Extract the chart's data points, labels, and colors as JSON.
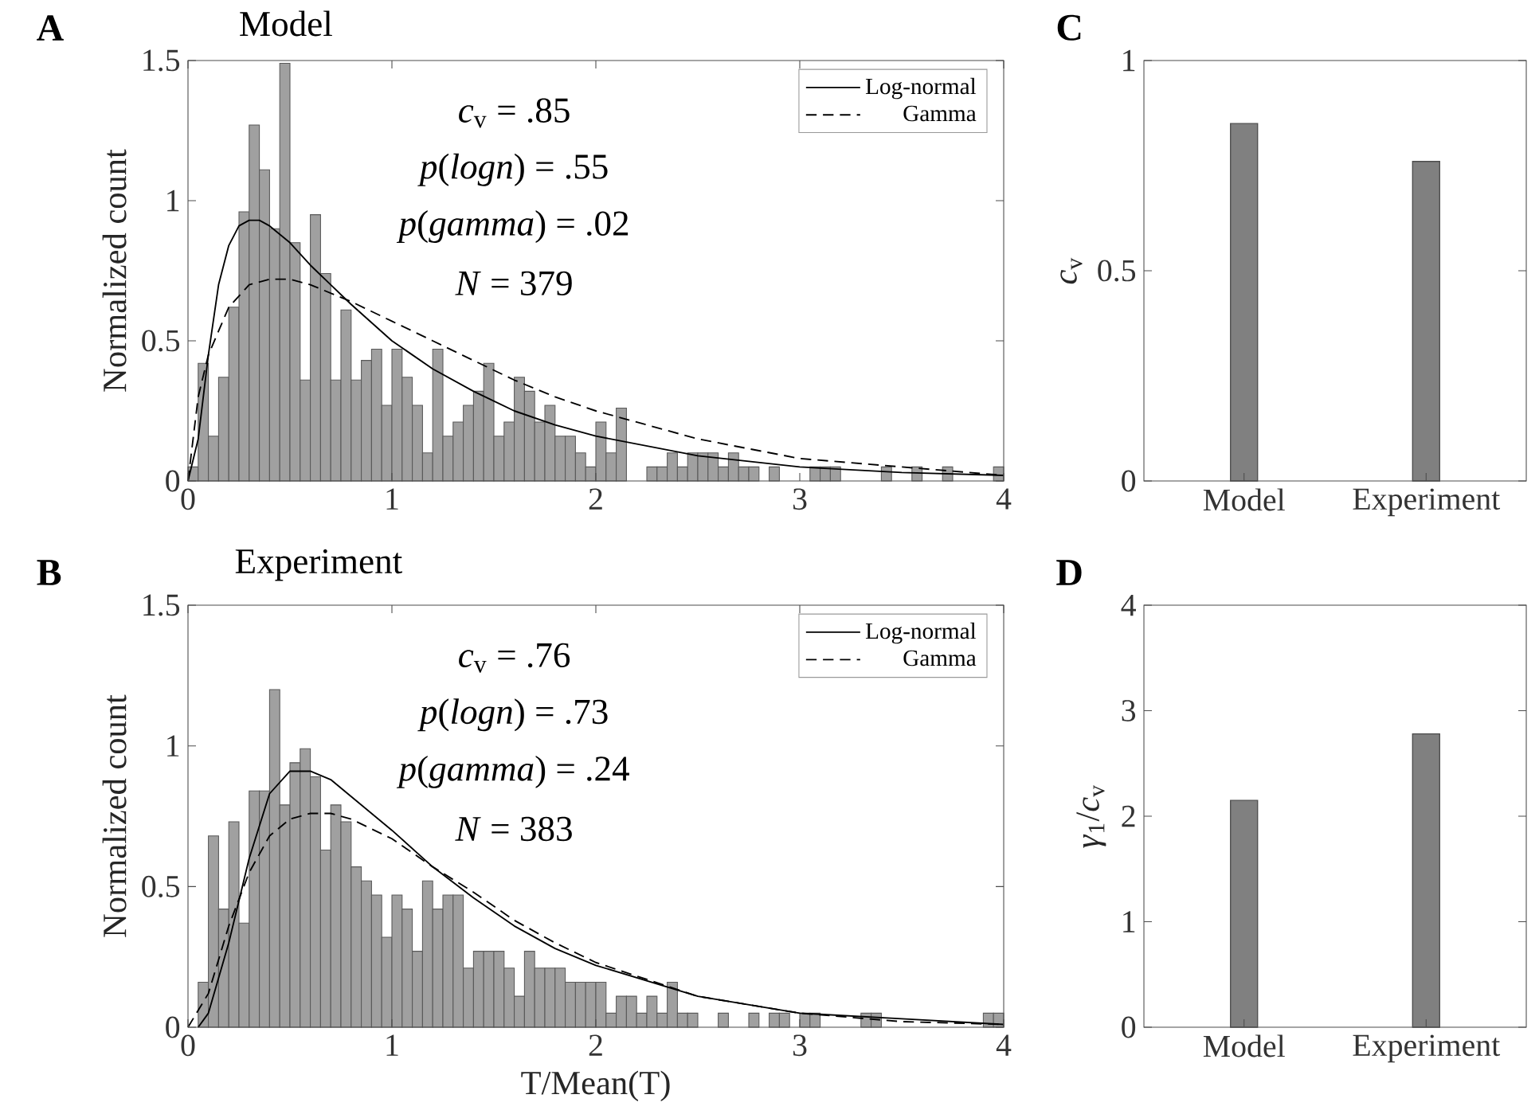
{
  "chart_data": [
    {
      "type": "histogram",
      "title": "Model",
      "ylabel": "Normalized count",
      "color": "#a0a0a0",
      "bins": [
        0,
        0.05,
        0.1,
        0.15,
        0.2,
        0.25,
        0.3,
        0.35,
        0.4,
        0.45,
        0.5,
        0.55,
        0.6,
        0.65,
        0.7,
        0.75,
        0.8,
        0.85,
        0.9,
        0.95,
        1,
        1.05,
        1.1,
        1.15,
        1.2,
        1.25,
        1.3,
        1.35,
        1.4,
        1.45,
        1.5,
        1.55,
        1.6,
        1.65,
        1.7,
        1.75,
        1.8,
        1.85,
        1.9,
        1.95,
        2,
        2.05,
        2.1,
        2.15,
        2.2,
        2.25,
        2.3,
        2.35,
        2.4,
        2.45,
        2.5,
        2.55,
        2.6,
        2.65,
        2.7,
        2.75,
        2.8,
        2.85,
        2.9,
        2.95,
        3,
        3.05,
        3.1,
        3.15,
        3.2,
        3.25,
        3.3,
        3.35,
        3.4,
        3.45,
        3.5,
        3.55,
        3.6,
        3.65,
        3.7,
        3.75,
        3.8,
        3.85,
        3.9,
        3.95,
        4
      ],
      "values": [
        0.05,
        0.42,
        0.16,
        0.37,
        0.62,
        0.96,
        1.27,
        1.11,
        0.9,
        1.49,
        0.85,
        0.36,
        0.95,
        0.74,
        0.36,
        0.61,
        0.36,
        0.43,
        0.47,
        0.27,
        0.47,
        0.37,
        0.27,
        0.1,
        0.47,
        0.16,
        0.21,
        0.27,
        0.32,
        0.42,
        0.16,
        0.21,
        0.37,
        0.32,
        0.21,
        0.27,
        0.16,
        0.16,
        0.1,
        0.05,
        0.21,
        0.1,
        0.26,
        0,
        0,
        0.05,
        0.05,
        0.1,
        0.05,
        0.1,
        0.1,
        0.1,
        0.05,
        0.1,
        0.05,
        0.05,
        0,
        0.05,
        0,
        0,
        0,
        0.05,
        0.05,
        0.05,
        0,
        0,
        0,
        0,
        0.05,
        0,
        0,
        0.05,
        0,
        0,
        0.05,
        0,
        0,
        0,
        0,
        0.05
      ],
      "series": [
        {
          "type": "line",
          "name": "Log-normal",
          "color": "#000000",
          "line_style": "solid",
          "x": [
            0,
            0.05,
            0.1,
            0.15,
            0.2,
            0.25,
            0.3,
            0.35,
            0.4,
            0.5,
            0.6,
            0.7,
            0.8,
            1,
            1.2,
            1.4,
            1.6,
            1.8,
            2,
            2.5,
            3,
            3.5,
            4
          ],
          "values": [
            0,
            0.15,
            0.45,
            0.7,
            0.84,
            0.91,
            0.93,
            0.93,
            0.91,
            0.85,
            0.77,
            0.7,
            0.63,
            0.5,
            0.4,
            0.32,
            0.25,
            0.2,
            0.16,
            0.09,
            0.05,
            0.03,
            0.02
          ]
        },
        {
          "type": "line",
          "name": "Gamma",
          "color": "#000000",
          "line_style": "dashed",
          "x": [
            0,
            0.05,
            0.1,
            0.2,
            0.3,
            0.4,
            0.5,
            0.6,
            0.8,
            1,
            1.2,
            1.4,
            1.6,
            1.8,
            2,
            2.5,
            3,
            3.5,
            4
          ],
          "values": [
            0,
            0.3,
            0.45,
            0.62,
            0.7,
            0.72,
            0.72,
            0.7,
            0.64,
            0.57,
            0.5,
            0.43,
            0.36,
            0.3,
            0.25,
            0.15,
            0.08,
            0.05,
            0.02
          ]
        }
      ],
      "xlim": [
        0,
        4
      ],
      "xticks": [
        0,
        1,
        2,
        3,
        4
      ],
      "ylim": [
        0,
        1.5
      ],
      "yticks": [
        0,
        0.5,
        1,
        1.5
      ],
      "legend": "top right",
      "annotations": [
        "A",
        "*c*$_{v}$ = .85",
        "*p*(*logn*) = .55",
        "*p*(*gamma*) = .02",
        "*N* = 379"
      ]
    },
    {
      "type": "histogram",
      "title": "Experiment",
      "xlabel": "T/Mean(T)",
      "ylabel": "Normalized count",
      "color": "#a0a0a0",
      "bins": [
        0,
        0.05,
        0.1,
        0.15,
        0.2,
        0.25,
        0.3,
        0.35,
        0.4,
        0.45,
        0.5,
        0.55,
        0.6,
        0.65,
        0.7,
        0.75,
        0.8,
        0.85,
        0.9,
        0.95,
        1,
        1.05,
        1.1,
        1.15,
        1.2,
        1.25,
        1.3,
        1.35,
        1.4,
        1.45,
        1.5,
        1.55,
        1.6,
        1.65,
        1.7,
        1.75,
        1.8,
        1.85,
        1.9,
        1.95,
        2,
        2.05,
        2.1,
        2.15,
        2.2,
        2.25,
        2.3,
        2.35,
        2.4,
        2.45,
        2.5,
        2.55,
        2.6,
        2.65,
        2.7,
        2.75,
        2.8,
        2.85,
        2.9,
        2.95,
        3,
        3.05,
        3.1,
        3.15,
        3.2,
        3.25,
        3.3,
        3.35,
        3.4,
        3.45,
        3.5,
        3.55,
        3.6,
        3.65,
        3.7,
        3.75,
        3.8,
        3.85,
        3.9,
        3.95,
        4
      ],
      "values": [
        0,
        0.16,
        0.68,
        0.42,
        0.73,
        0.37,
        0.84,
        0.84,
        1.2,
        0.79,
        0.94,
        0.99,
        0.89,
        0.63,
        0.79,
        0.73,
        0.57,
        0.52,
        0.47,
        0.32,
        0.47,
        0.42,
        0.27,
        0.52,
        0.42,
        0.47,
        0.47,
        0.21,
        0.27,
        0.27,
        0.27,
        0.21,
        0.11,
        0.27,
        0.21,
        0.21,
        0.21,
        0.16,
        0.16,
        0.16,
        0.16,
        0.05,
        0.11,
        0.11,
        0.05,
        0.11,
        0.05,
        0.16,
        0.05,
        0.05,
        0,
        0,
        0.05,
        0,
        0,
        0.05,
        0,
        0.05,
        0.05,
        0,
        0.05,
        0.05,
        0,
        0,
        0,
        0,
        0.05,
        0.05,
        0,
        0,
        0,
        0,
        0,
        0,
        0,
        0,
        0,
        0,
        0.05,
        0.05
      ],
      "series": [
        {
          "type": "line",
          "name": "Log-normal",
          "color": "#000000",
          "line_style": "solid",
          "x": [
            0.05,
            0.1,
            0.2,
            0.3,
            0.4,
            0.5,
            0.6,
            0.7,
            0.8,
            1,
            1.2,
            1.4,
            1.6,
            1.8,
            2,
            2.5,
            3,
            3.5,
            4
          ],
          "values": [
            0,
            0.05,
            0.3,
            0.6,
            0.83,
            0.91,
            0.91,
            0.88,
            0.82,
            0.7,
            0.57,
            0.46,
            0.36,
            0.28,
            0.22,
            0.11,
            0.05,
            0.03,
            0.01
          ]
        },
        {
          "type": "line",
          "name": "Gamma",
          "color": "#000000",
          "line_style": "dashed",
          "x": [
            0,
            0.1,
            0.2,
            0.3,
            0.4,
            0.5,
            0.6,
            0.7,
            0.8,
            1,
            1.2,
            1.4,
            1.6,
            1.8,
            2,
            2.5,
            3,
            3.5,
            4
          ],
          "values": [
            0,
            0.12,
            0.36,
            0.55,
            0.68,
            0.74,
            0.76,
            0.76,
            0.74,
            0.67,
            0.57,
            0.48,
            0.38,
            0.3,
            0.23,
            0.11,
            0.05,
            0.02,
            0.01
          ]
        }
      ],
      "xlim": [
        0,
        4
      ],
      "xticks": [
        0,
        1,
        2,
        3,
        4
      ],
      "ylim": [
        0,
        1.5
      ],
      "yticks": [
        0,
        0.5,
        1,
        1.5
      ],
      "legend": "top right",
      "annotations": [
        "B",
        "*c*$_{v}$ = .76",
        "*p*(*logn*) = .73",
        "*p*(*gamma*) = .24",
        "*N* = 383"
      ]
    },
    {
      "type": "bar",
      "ylabel": "*c*$_{v}$",
      "categories": [
        "Model",
        "Experiment"
      ],
      "values": [
        0.85,
        0.76
      ],
      "color": "#808080",
      "ylim": [
        0,
        1
      ],
      "yticks": [
        0,
        0.5,
        1
      ],
      "annotations": [
        "C"
      ]
    },
    {
      "type": "bar",
      "ylabel": "*γ*$_{1}$/*c*$_{v}$",
      "categories": [
        "Model",
        "Experiment"
      ],
      "values": [
        2.15,
        2.78
      ],
      "color": "#808080",
      "ylim": [
        0,
        4
      ],
      "yticks": [
        0,
        1,
        2,
        3,
        4
      ],
      "annotations": [
        "D"
      ]
    }
  ]
}
